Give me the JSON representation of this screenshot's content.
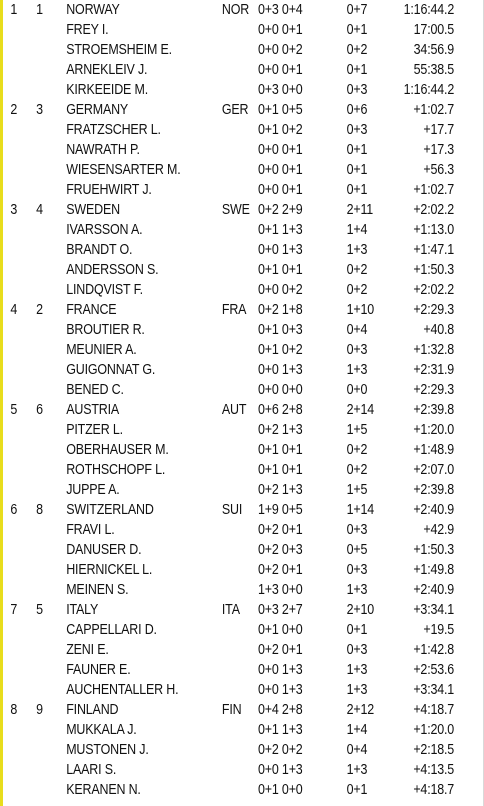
{
  "teams": [
    {
      "rank": "1",
      "bib": "1",
      "name": "NORWAY",
      "nat": "NOR",
      "shooting": "0+3 0+4",
      "penalties": "0+7",
      "time": "1:16:44.2",
      "athletes": [
        {
          "name": "FREY I.",
          "shooting": "0+0 0+1",
          "penalties": "0+1",
          "time": "17:00.5"
        },
        {
          "name": "STROEMSHEIM E.",
          "shooting": "0+0 0+2",
          "penalties": "0+2",
          "time": "34:56.9"
        },
        {
          "name": "ARNEKLEIV J.",
          "shooting": "0+0 0+1",
          "penalties": "0+1",
          "time": "55:38.5"
        },
        {
          "name": "KIRKEEIDE M.",
          "shooting": "0+3 0+0",
          "penalties": "0+3",
          "time": "1:16:44.2"
        }
      ]
    },
    {
      "rank": "2",
      "bib": "3",
      "name": "GERMANY",
      "nat": "GER",
      "shooting": "0+1 0+5",
      "penalties": "0+6",
      "time": "+1:02.7",
      "athletes": [
        {
          "name": "FRATZSCHER L.",
          "shooting": "0+1 0+2",
          "penalties": "0+3",
          "time": "+17.7"
        },
        {
          "name": "NAWRATH P.",
          "shooting": "0+0 0+1",
          "penalties": "0+1",
          "time": "+17.3"
        },
        {
          "name": "WIESENSARTER M.",
          "shooting": "0+0 0+1",
          "penalties": "0+1",
          "time": "+56.3"
        },
        {
          "name": "FRUEHWIRT J.",
          "shooting": "0+0 0+1",
          "penalties": "0+1",
          "time": "+1:02.7"
        }
      ]
    },
    {
      "rank": "3",
      "bib": "4",
      "name": "SWEDEN",
      "nat": "SWE",
      "shooting": "0+2 2+9",
      "penalties": "2+11",
      "time": "+2:02.2",
      "athletes": [
        {
          "name": "IVARSSON A.",
          "shooting": "0+1 1+3",
          "penalties": "1+4",
          "time": "+1:13.0"
        },
        {
          "name": "BRANDT O.",
          "shooting": "0+0 1+3",
          "penalties": "1+3",
          "time": "+1:47.1"
        },
        {
          "name": "ANDERSSON S.",
          "shooting": "0+1 0+1",
          "penalties": "0+2",
          "time": "+1:50.3"
        },
        {
          "name": "LINDQVIST F.",
          "shooting": "0+0 0+2",
          "penalties": "0+2",
          "time": "+2:02.2"
        }
      ]
    },
    {
      "rank": "4",
      "bib": "2",
      "name": "FRANCE",
      "nat": "FRA",
      "shooting": "0+2 1+8",
      "penalties": "1+10",
      "time": "+2:29.3",
      "athletes": [
        {
          "name": "BROUTIER R.",
          "shooting": "0+1 0+3",
          "penalties": "0+4",
          "time": "+40.8"
        },
        {
          "name": "MEUNIER A.",
          "shooting": "0+1 0+2",
          "penalties": "0+3",
          "time": "+1:32.8"
        },
        {
          "name": "GUIGONNAT G.",
          "shooting": "0+0 1+3",
          "penalties": "1+3",
          "time": "+2:31.9"
        },
        {
          "name": "BENED C.",
          "shooting": "0+0 0+0",
          "penalties": "0+0",
          "time": "+2:29.3"
        }
      ]
    },
    {
      "rank": "5",
      "bib": "6",
      "name": "AUSTRIA",
      "nat": "AUT",
      "shooting": "0+6 2+8",
      "penalties": "2+14",
      "time": "+2:39.8",
      "athletes": [
        {
          "name": "PITZER L.",
          "shooting": "0+2 1+3",
          "penalties": "1+5",
          "time": "+1:20.0"
        },
        {
          "name": "OBERHAUSER M.",
          "shooting": "0+1 0+1",
          "penalties": "0+2",
          "time": "+1:48.9"
        },
        {
          "name": "ROTHSCHOPF L.",
          "shooting": "0+1 0+1",
          "penalties": "0+2",
          "time": "+2:07.0"
        },
        {
          "name": "JUPPE A.",
          "shooting": "0+2 1+3",
          "penalties": "1+5",
          "time": "+2:39.8"
        }
      ]
    },
    {
      "rank": "6",
      "bib": "8",
      "name": "SWITZERLAND",
      "nat": "SUI",
      "shooting": "1+9 0+5",
      "penalties": "1+14",
      "time": "+2:40.9",
      "athletes": [
        {
          "name": "FRAVI L.",
          "shooting": "0+2 0+1",
          "penalties": "0+3",
          "time": "+42.9"
        },
        {
          "name": "DANUSER D.",
          "shooting": "0+2 0+3",
          "penalties": "0+5",
          "time": "+1:50.3"
        },
        {
          "name": "HIERNICKEL L.",
          "shooting": "0+2 0+1",
          "penalties": "0+3",
          "time": "+1:49.8"
        },
        {
          "name": "MEINEN S.",
          "shooting": "1+3 0+0",
          "penalties": "1+3",
          "time": "+2:40.9"
        }
      ]
    },
    {
      "rank": "7",
      "bib": "5",
      "name": "ITALY",
      "nat": "ITA",
      "shooting": "0+3 2+7",
      "penalties": "2+10",
      "time": "+3:34.1",
      "athletes": [
        {
          "name": "CAPPELLARI D.",
          "shooting": "0+1 0+0",
          "penalties": "0+1",
          "time": "+19.5"
        },
        {
          "name": "ZENI E.",
          "shooting": "0+2 0+1",
          "penalties": "0+3",
          "time": "+1:42.8"
        },
        {
          "name": "FAUNER E.",
          "shooting": "0+0 1+3",
          "penalties": "1+3",
          "time": "+2:53.6"
        },
        {
          "name": "AUCHENTALLER H.",
          "shooting": "0+0 1+3",
          "penalties": "1+3",
          "time": "+3:34.1"
        }
      ]
    },
    {
      "rank": "8",
      "bib": "9",
      "name": "FINLAND",
      "nat": "FIN",
      "shooting": "0+4 2+8",
      "penalties": "2+12",
      "time": "+4:18.7",
      "athletes": [
        {
          "name": "MUKKALA J.",
          "shooting": "0+1 1+3",
          "penalties": "1+4",
          "time": "+1:20.0"
        },
        {
          "name": "MUSTONEN J.",
          "shooting": "0+2 0+2",
          "penalties": "0+4",
          "time": "+2:18.5"
        },
        {
          "name": "LAARI S.",
          "shooting": "0+0 1+3",
          "penalties": "1+3",
          "time": "+4:13.5"
        },
        {
          "name": "KERANEN N.",
          "shooting": "0+1 0+0",
          "penalties": "0+1",
          "time": "+4:18.7"
        }
      ]
    }
  ]
}
